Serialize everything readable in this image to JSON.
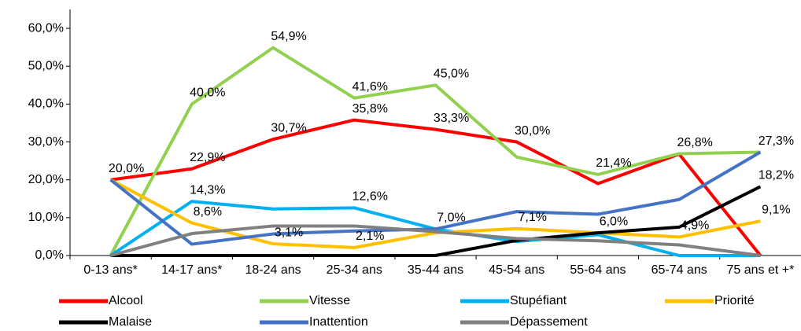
{
  "chart_data": {
    "type": "line",
    "categories": [
      "0-13 ans*",
      "14-17 ans*",
      "18-24 ans",
      "25-34 ans",
      "35-44 ans",
      "45-54 ans",
      "55-64 ans",
      "65-74 ans",
      "75 ans et +*"
    ],
    "ylim": [
      0,
      65
    ],
    "yticks": [
      {
        "value": 0,
        "label": "0,0%"
      },
      {
        "value": 10,
        "label": "10,0%"
      },
      {
        "value": 20,
        "label": "20,0%"
      },
      {
        "value": 30,
        "label": "30,0%"
      },
      {
        "value": 40,
        "label": "40,0%"
      },
      {
        "value": 50,
        "label": "50,0%"
      },
      {
        "value": 60,
        "label": "60,0%"
      }
    ],
    "legend": "bottom",
    "series": [
      {
        "name": "Alcool",
        "color": "#ff0000",
        "values": [
          20.0,
          22.9,
          30.7,
          35.8,
          33.3,
          30.0,
          19,
          26.8,
          0
        ],
        "value_labels": [
          "20,0%",
          "22,9%",
          "30,7%",
          "35,8%",
          "33,3%",
          "30,0%",
          null,
          "26,8%",
          null
        ]
      },
      {
        "name": "Vitesse",
        "color": "#92d050",
        "values": [
          0,
          40.0,
          54.9,
          41.6,
          45.0,
          26,
          21.4,
          26.9,
          27.3
        ],
        "value_labels": [
          null,
          "40,0%",
          "54,9%",
          "41,6%",
          "45,0%",
          null,
          "21,4%",
          null,
          "27,3%"
        ]
      },
      {
        "name": "Stupéfiant",
        "color": "#00b0f0",
        "values": [
          0,
          14.3,
          12.3,
          12.6,
          7.0,
          3.7,
          5.5,
          0,
          0
        ],
        "value_labels": [
          null,
          "14,3%",
          null,
          "12,6%",
          "7,0%",
          null,
          null,
          null,
          null
        ]
      },
      {
        "name": "Priorité",
        "color": "#ffc000",
        "values": [
          20,
          8.6,
          3.1,
          2.1,
          6,
          7.1,
          6.0,
          4.9,
          9.1
        ],
        "value_labels": [
          null,
          "8,6%",
          "3,1%",
          "2,1%",
          null,
          "7,1%",
          "6,0%",
          "4,9%",
          "9,1%"
        ]
      },
      {
        "name": "Malaise",
        "color": "#000000",
        "values": [
          0,
          0,
          0,
          0,
          0,
          4,
          6.0,
          7.5,
          18.2
        ],
        "value_labels": [
          null,
          null,
          null,
          null,
          null,
          null,
          null,
          null,
          "18,2%"
        ]
      },
      {
        "name": "Inattention",
        "color": "#4472c4",
        "values": [
          20,
          3,
          5.7,
          6.5,
          7,
          11.6,
          10.9,
          14.8,
          27.3
        ]
      },
      {
        "name": "Dépassement",
        "color": "#808080",
        "values": [
          0,
          5.8,
          7.8,
          7.8,
          6.3,
          4.5,
          3.9,
          2.8,
          0
        ]
      }
    ]
  }
}
